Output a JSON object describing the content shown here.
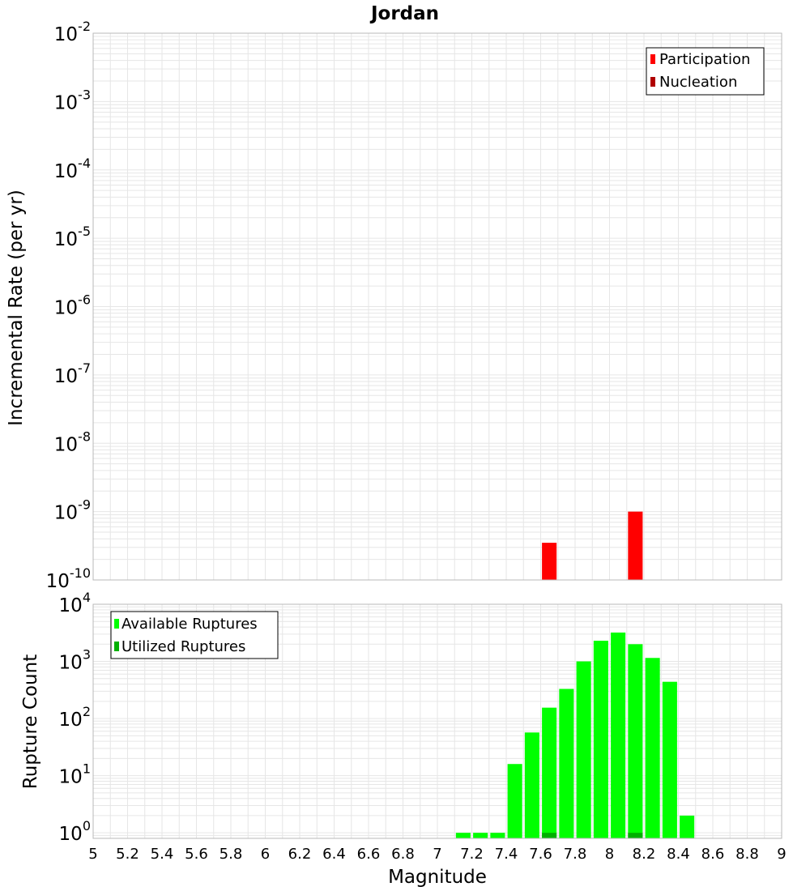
{
  "chart_data": [
    {
      "type": "bar",
      "title": "Jordan",
      "ylabel": "Incremental Rate (per yr)",
      "xlabel": "",
      "xlim": [
        5,
        9
      ],
      "ylim": [
        1e-10,
        0.01
      ],
      "y_scale": "log",
      "grid": true,
      "legend_position": "top-right",
      "bar_width": 0.085,
      "series": [
        {
          "name": "Participation",
          "color": "#ff0000",
          "x": [
            7.65,
            8.15
          ],
          "values": [
            3.5e-10,
            1e-09
          ]
        },
        {
          "name": "Nucleation",
          "color": "#b00000",
          "x": [],
          "values": []
        }
      ],
      "y_tick_exponents": [
        "-10",
        "-9",
        "-8",
        "-7",
        "-6",
        "-5",
        "-4",
        "-3",
        "-2"
      ]
    },
    {
      "type": "bar",
      "title": "",
      "ylabel": "Rupture Count",
      "xlabel": "Magnitude",
      "xlim": [
        5,
        9
      ],
      "ylim": [
        0.8,
        10000
      ],
      "y_scale": "log",
      "grid": true,
      "legend_position": "top-left",
      "bar_width": 0.085,
      "x_ticks": [
        "5",
        "5.2",
        "5.4",
        "5.6",
        "5.8",
        "6",
        "6.2",
        "6.4",
        "6.6",
        "6.8",
        "7",
        "7.2",
        "7.4",
        "7.6",
        "7.8",
        "8",
        "8.2",
        "8.4",
        "8.6",
        "8.8",
        "9"
      ],
      "series": [
        {
          "name": "Available Ruptures",
          "color": "#00ff00",
          "x": [
            7.15,
            7.25,
            7.35,
            7.45,
            7.55,
            7.65,
            7.75,
            7.85,
            7.95,
            8.05,
            8.15,
            8.25,
            8.35,
            8.45
          ],
          "values": [
            1,
            1,
            1,
            16,
            57,
            155,
            330,
            1000,
            2300,
            3200,
            2000,
            1150,
            440,
            2
          ]
        },
        {
          "name": "Utilized Ruptures",
          "color": "#00b000",
          "x": [
            7.65,
            8.15
          ],
          "values": [
            1,
            1
          ]
        }
      ],
      "y_tick_exponents": [
        "0",
        "1",
        "2",
        "3",
        "4"
      ]
    }
  ]
}
